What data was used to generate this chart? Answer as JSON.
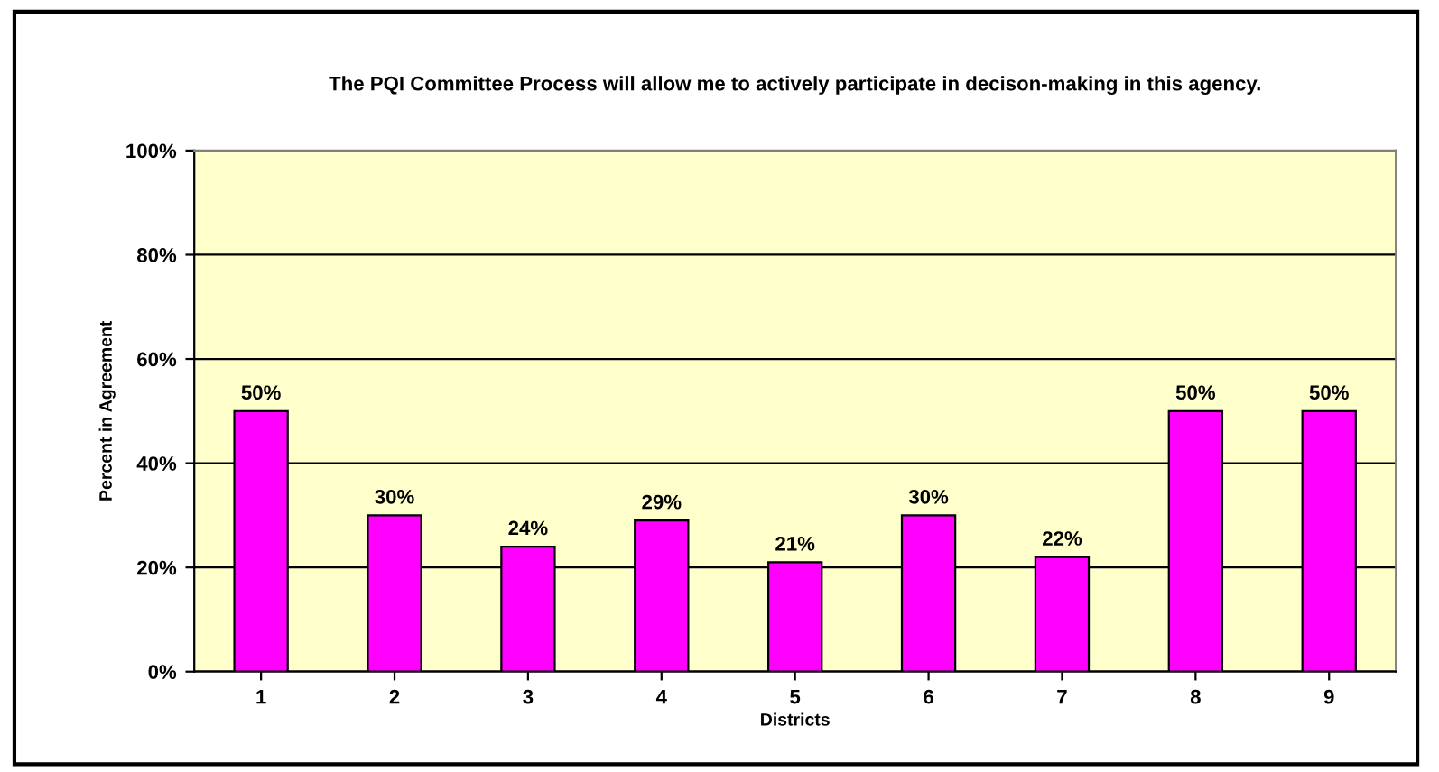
{
  "chart_data": {
    "type": "bar",
    "title": "The PQI Committee Process will allow me to actively participate in decison-making in this agency.",
    "xlabel": "Districts",
    "ylabel": "Percent in Agreement",
    "categories": [
      "1",
      "2",
      "3",
      "4",
      "5",
      "6",
      "7",
      "8",
      "9"
    ],
    "series": [
      {
        "color": "#ff00ff",
        "values": [
          50,
          30,
          24,
          29,
          21,
          30,
          22,
          50,
          50
        ],
        "value_labels": [
          "50%",
          "30%",
          "24%",
          "29%",
          "21%",
          "30%",
          "22%",
          "50%",
          "50%"
        ]
      }
    ],
    "ylim": [
      0,
      100
    ],
    "yticks": [
      {
        "value": 0,
        "label": "0%"
      },
      {
        "value": 20,
        "label": "20%"
      },
      {
        "value": 40,
        "label": "40%"
      },
      {
        "value": 60,
        "label": "60%"
      },
      {
        "value": 80,
        "label": "80%"
      },
      {
        "value": 100,
        "label": "100%"
      }
    ],
    "grid": "y",
    "legend": false
  }
}
